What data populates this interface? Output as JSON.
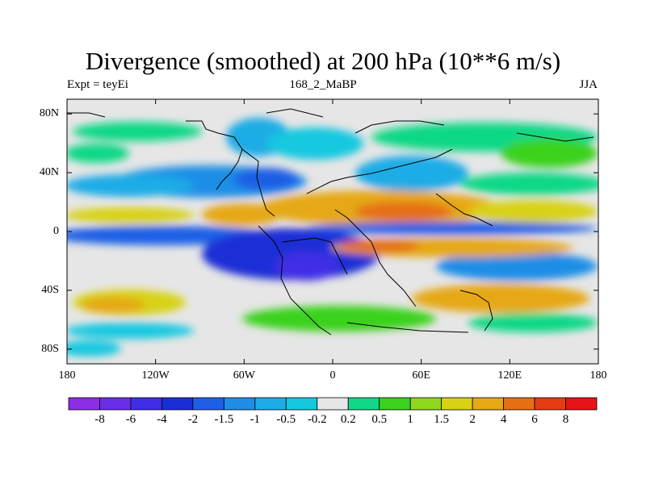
{
  "chart_data": {
    "type": "heatmap",
    "title": "Divergence (smoothed) at 200 hPa (10**6 m/s)",
    "left_label": "Expt = teyEi",
    "center_label": "168_2_MaBP",
    "right_label": "JJA",
    "x_ticks": [
      "180",
      "120W",
      "60W",
      "0",
      "60E",
      "120E",
      "180"
    ],
    "y_ticks": [
      "80N",
      "40N",
      "0",
      "40S",
      "80S"
    ],
    "xlim": [
      -180,
      180
    ],
    "ylim": [
      -90,
      90
    ],
    "colorbar": {
      "labels": [
        "-8",
        "-6",
        "-4",
        "-2",
        "-1.5",
        "-1",
        "-0.5",
        "-0.2",
        "0.2",
        "0.5",
        "1",
        "1.5",
        "2",
        "4",
        "6",
        "8"
      ],
      "colors": [
        "#8c2ee6",
        "#6a2ee6",
        "#3f2ee6",
        "#1a2ed6",
        "#1e5fe6",
        "#1e8ee6",
        "#1eace6",
        "#14c8e0",
        "#e6e6e6",
        "#10d886",
        "#3ad21e",
        "#90d81e",
        "#d8d214",
        "#e6a814",
        "#e66e14",
        "#e63c14",
        "#e61414"
      ]
    }
  }
}
